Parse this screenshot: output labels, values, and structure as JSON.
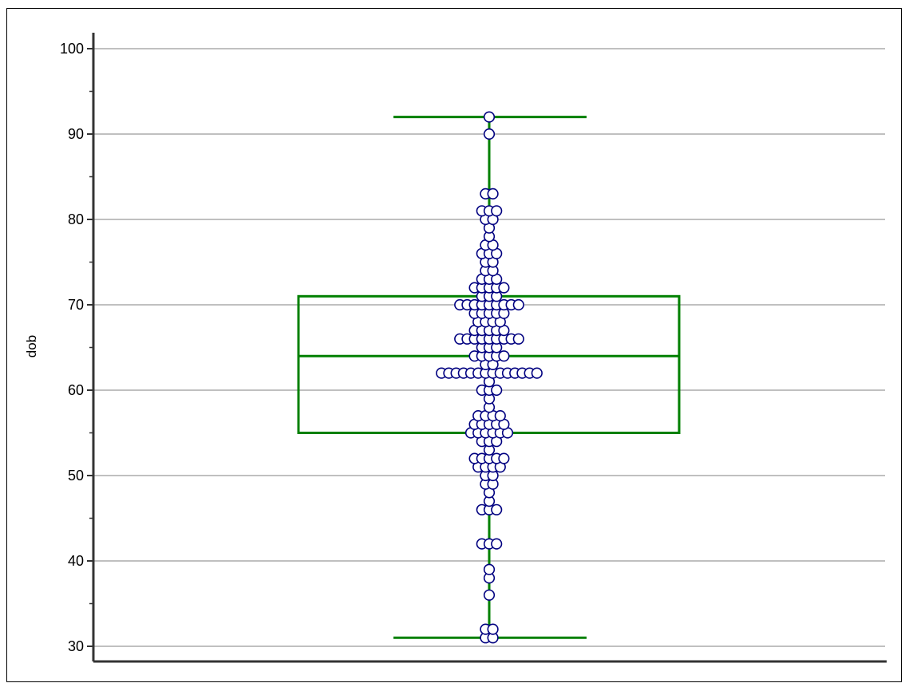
{
  "chart_data": {
    "type": "box",
    "ylabel": "dob",
    "xlabel": "",
    "ylim": [
      30,
      100
    ],
    "yticks_major": [
      30,
      40,
      50,
      60,
      70,
      80,
      90,
      100
    ],
    "yticks_minor_step": 5,
    "grid": "horizontal",
    "box": {
      "whisker_low": 31,
      "q1": 55,
      "median": 64,
      "q3": 71,
      "whisker_high": 92
    },
    "points": [
      31,
      31,
      32,
      32,
      36,
      38,
      39,
      42,
      42,
      42,
      46,
      46,
      46,
      47,
      48,
      49,
      49,
      50,
      50,
      51,
      51,
      51,
      51,
      52,
      52,
      52,
      52,
      52,
      53,
      54,
      54,
      54,
      55,
      55,
      55,
      55,
      55,
      55,
      56,
      56,
      56,
      56,
      56,
      57,
      57,
      57,
      57,
      58,
      59,
      60,
      60,
      60,
      61,
      62,
      62,
      62,
      62,
      62,
      62,
      62,
      62,
      62,
      62,
      62,
      62,
      62,
      62,
      63,
      63,
      64,
      64,
      64,
      64,
      64,
      65,
      65,
      65,
      66,
      66,
      66,
      66,
      66,
      66,
      66,
      66,
      66,
      67,
      67,
      67,
      67,
      67,
      68,
      68,
      68,
      68,
      69,
      69,
      69,
      69,
      69,
      70,
      70,
      70,
      70,
      70,
      70,
      70,
      70,
      70,
      71,
      71,
      71,
      72,
      72,
      72,
      72,
      72,
      73,
      73,
      73,
      74,
      74,
      75,
      75,
      76,
      76,
      76,
      77,
      77,
      78,
      79,
      80,
      80,
      81,
      81,
      81,
      83,
      83,
      90,
      92
    ],
    "colors": {
      "box": "#008000",
      "point_stroke": "#000080",
      "point_fill": "#ffffff",
      "grid": "#808080",
      "axis": "#333333"
    }
  }
}
